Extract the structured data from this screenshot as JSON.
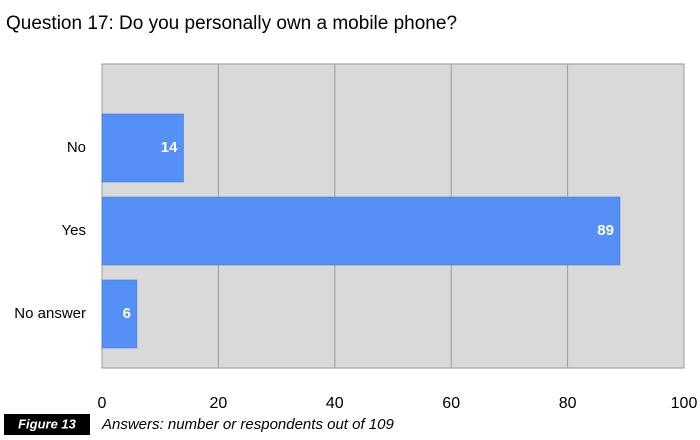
{
  "chart_data": {
    "type": "hbar",
    "title": "Question 17: Do you personally own a mobile phone?",
    "categories": [
      "No",
      "Yes",
      "No answer"
    ],
    "values": [
      14,
      89,
      6
    ],
    "color": "#5590f6",
    "xlim": [
      0,
      100
    ],
    "xticks": [
      0,
      20,
      40,
      60,
      80,
      100
    ],
    "grid": true,
    "figure_label": "Figure 13",
    "caption": "Answers: number or respondents out of 109"
  }
}
